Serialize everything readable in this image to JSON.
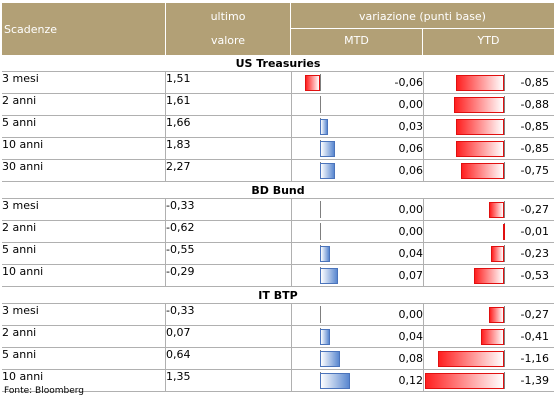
{
  "header": {
    "scadenze": "Scadenze",
    "ultimo": "ultimo",
    "valore": "valore",
    "variazione": "variazione (punti base)",
    "mtd": "MTD",
    "ytd": "YTD"
  },
  "sections": [
    {
      "title": "US Treasuries",
      "rows": [
        {
          "name": "3 mesi",
          "value": "1,51",
          "mtd": "-0,06",
          "ytd": "-0,85"
        },
        {
          "name": "2 anni",
          "value": "1,61",
          "mtd": "0,00",
          "ytd": "-0,88"
        },
        {
          "name": "5 anni",
          "value": "1,66",
          "mtd": "0,03",
          "ytd": "-0,85"
        },
        {
          "name": "10 anni",
          "value": "1,83",
          "mtd": "0,06",
          "ytd": "-0,85"
        },
        {
          "name": "30 anni",
          "value": "2,27",
          "mtd": "0,06",
          "ytd": "-0,75"
        }
      ]
    },
    {
      "title": "BD Bund",
      "rows": [
        {
          "name": "3 mesi",
          "value": "-0,33",
          "mtd": "0,00",
          "ytd": "-0,27"
        },
        {
          "name": "2 anni",
          "value": "-0,62",
          "mtd": "0,00",
          "ytd": "-0,01"
        },
        {
          "name": "5 anni",
          "value": "-0,55",
          "mtd": "0,04",
          "ytd": "-0,23"
        },
        {
          "name": "10 anni",
          "value": "-0,29",
          "mtd": "0,07",
          "ytd": "-0,53"
        }
      ]
    },
    {
      "title": "IT BTP",
      "rows": [
        {
          "name": "3 mesi",
          "value": "-0,33",
          "mtd": "0,00",
          "ytd": "-0,27"
        },
        {
          "name": "2 anni",
          "value": "0,07",
          "mtd": "0,04",
          "ytd": "-0,41"
        },
        {
          "name": "5 anni",
          "value": "0,64",
          "mtd": "0,08",
          "ytd": "-1,16"
        },
        {
          "name": "10 anni",
          "value": "1,35",
          "mtd": "0,12",
          "ytd": "-1,39"
        }
      ]
    }
  ],
  "source": "Fonte: Bloomberg",
  "colors": {
    "header_bg": "#b2a076",
    "positive_bar": "#5a88d0",
    "negative_bar": "#ff2020"
  }
}
